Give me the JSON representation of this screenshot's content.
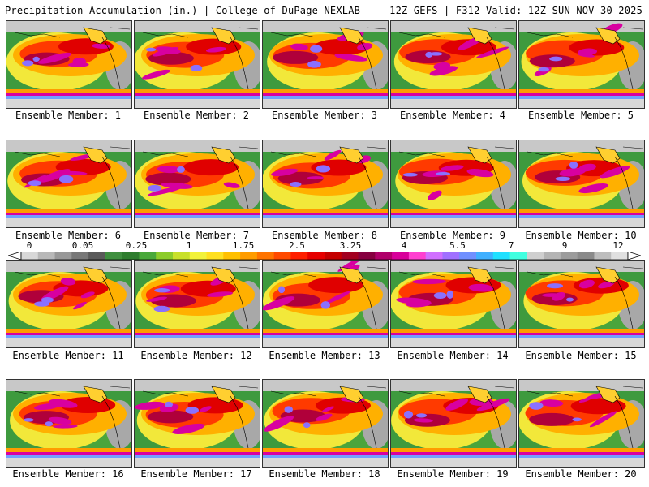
{
  "header": {
    "left": "Precipitation Accumulation (in.) | College of DuPage NEXLAB",
    "right": "12Z GEFS | F312 Valid: 12Z SUN NOV 30 2025"
  },
  "panels": [
    {
      "label": "Ensemble Member: 1"
    },
    {
      "label": "Ensemble Member: 2"
    },
    {
      "label": "Ensemble Member: 3"
    },
    {
      "label": "Ensemble Member: 4"
    },
    {
      "label": "Ensemble Member: 5"
    },
    {
      "label": "Ensemble Member: 6"
    },
    {
      "label": "Ensemble Member: 7"
    },
    {
      "label": "Ensemble Member: 8"
    },
    {
      "label": "Ensemble Member: 9"
    },
    {
      "label": "Ensemble Member: 10"
    },
    {
      "label": "Ensemble Member: 11"
    },
    {
      "label": "Ensemble Member: 12"
    },
    {
      "label": "Ensemble Member: 13"
    },
    {
      "label": "Ensemble Member: 14"
    },
    {
      "label": "Ensemble Member: 15"
    },
    {
      "label": "Ensemble Member: 16"
    },
    {
      "label": "Ensemble Member: 17"
    },
    {
      "label": "Ensemble Member: 18"
    },
    {
      "label": "Ensemble Member: 19"
    },
    {
      "label": "Ensemble Member: 20"
    }
  ],
  "colorbar": {
    "ticks": [
      "0",
      "0.05",
      "0.25",
      "1",
      "1.75",
      "2.5",
      "3.25",
      "4",
      "5.5",
      "7",
      "9",
      "12"
    ],
    "colors": [
      "#d8d8d8",
      "#b8b8b8",
      "#989898",
      "#787878",
      "#5a5a5a",
      "#3f8f3f",
      "#2e7d2e",
      "#49a83a",
      "#8ccc2a",
      "#c8e02a",
      "#f2f23a",
      "#ffe020",
      "#ffc000",
      "#ff9c00",
      "#ff7400",
      "#ff4a00",
      "#ff1f00",
      "#e60000",
      "#c40000",
      "#a20020",
      "#860040",
      "#b0006a",
      "#d8009a",
      "#ff40d0",
      "#d070ff",
      "#a070ff",
      "#7090ff",
      "#40b0ff",
      "#20e0ff",
      "#40ffe0",
      "#cfcfcf",
      "#b4b4b4",
      "#9c9c9c",
      "#8a8a8a",
      "#bdbdbd",
      "#e0e0e0"
    ]
  }
}
